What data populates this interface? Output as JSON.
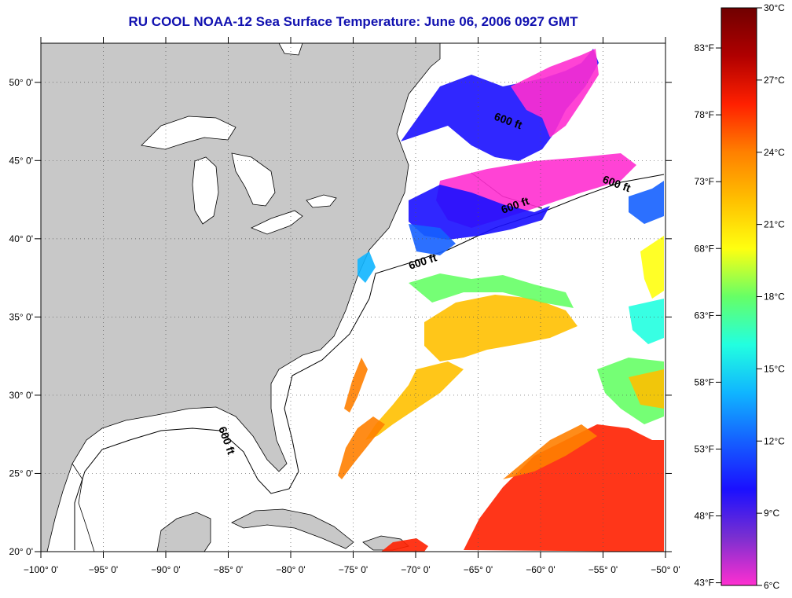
{
  "title": "RU COOL  NOAA-12  Sea Surface Temperature:  June 06, 2006 0927 GMT",
  "map": {
    "lon_range": [
      -100,
      -50
    ],
    "lat_range": [
      20,
      52.5
    ],
    "lon_ticks": [
      "−100° 0'",
      "−95° 0'",
      "−90° 0'",
      "−85° 0'",
      "−80° 0'",
      "−75° 0'",
      "−70° 0'",
      "−65° 0'",
      "−60° 0'",
      "−55° 0'",
      "−50° 0'"
    ],
    "lat_ticks": [
      "20° 0'",
      "25° 0'",
      "30° 0'",
      "35° 0'",
      "40° 0'",
      "45° 0'",
      "50° 0'"
    ],
    "lon_values": [
      -100,
      -95,
      -90,
      -85,
      -80,
      -75,
      -70,
      -65,
      -60,
      -55,
      -50
    ],
    "lat_values": [
      20,
      25,
      30,
      35,
      40,
      45,
      50
    ],
    "grid": "dotted",
    "land_color": "#c8c8c8",
    "cloud_color": "#ffffff",
    "contour_label": "600 ft"
  },
  "colorbar": {
    "fahrenheit_labels": [
      "83°F",
      "78°F",
      "73°F",
      "68°F",
      "63°F",
      "58°F",
      "53°F",
      "48°F",
      "43°F"
    ],
    "fahrenheit_values": [
      83,
      78,
      73,
      68,
      63,
      58,
      53,
      48,
      43
    ],
    "celsius_labels": [
      "30°C",
      "27°C",
      "24°C",
      "21°C",
      "18°C",
      "15°C",
      "12°C",
      "9°C",
      "6°C"
    ],
    "celsius_values": [
      30,
      27,
      24,
      21,
      18,
      15,
      12,
      9,
      6
    ],
    "range_c": [
      6,
      30
    ],
    "colors": [
      "#ff2fd0",
      "#7a2fd0",
      "#1a10ff",
      "#1560ff",
      "#10b5ff",
      "#22ffe0",
      "#66ff66",
      "#ffff10",
      "#ffc000",
      "#ff8000",
      "#ff2000",
      "#b00000",
      "#700000"
    ]
  }
}
